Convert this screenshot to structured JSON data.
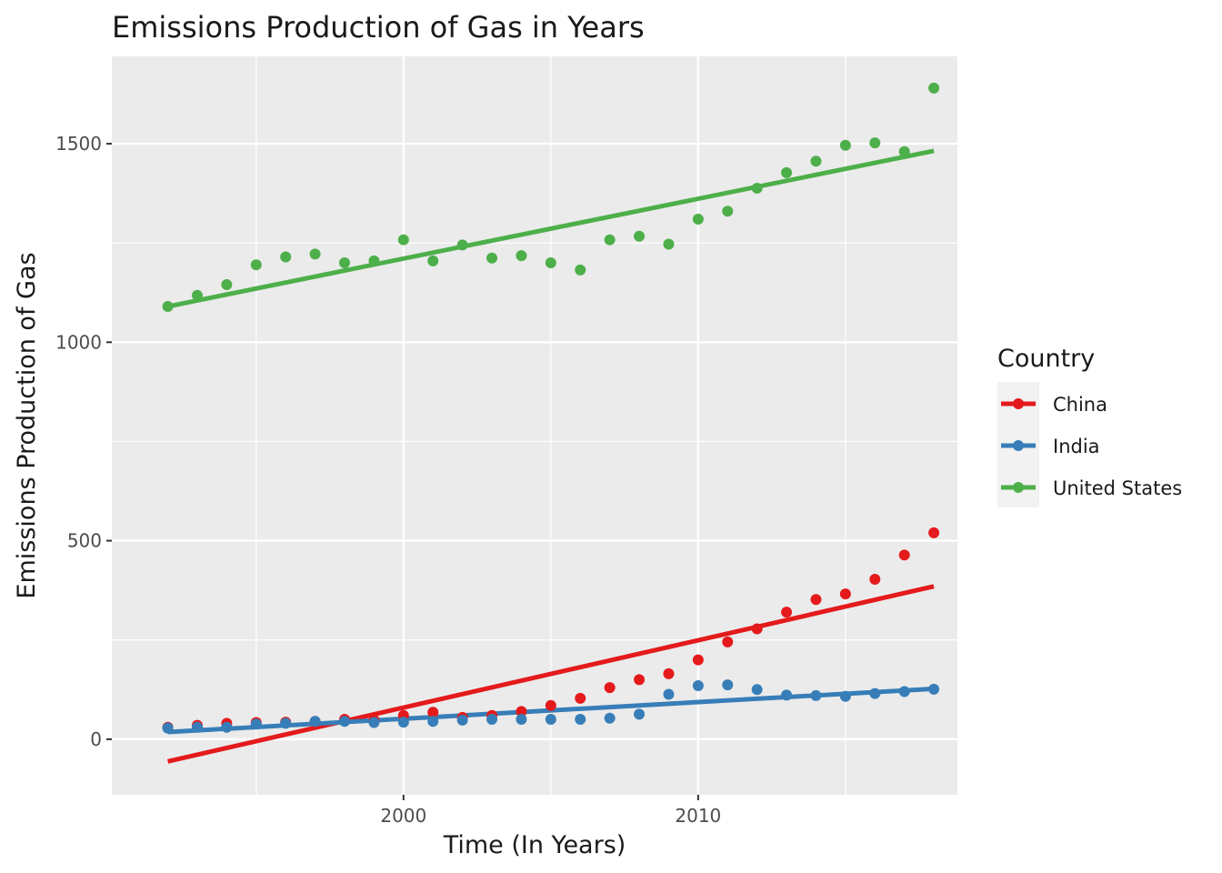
{
  "chart_data": {
    "type": "scatter",
    "title": "Emissions Production of Gas in Years",
    "xlabel": "Time (In Years)",
    "ylabel": "Emissions Production of Gas",
    "xlim": [
      1990.1,
      2018.8
    ],
    "ylim": [
      -140,
      1720
    ],
    "x_ticks": [
      2000,
      2010
    ],
    "y_ticks": [
      0,
      500,
      1000,
      1500
    ],
    "x_tick_labels": [
      "2000",
      "2010"
    ],
    "y_tick_labels": [
      "0",
      "500",
      "1000",
      "1500"
    ],
    "grid": true,
    "legend": {
      "title": "Country",
      "position": "right"
    },
    "x": [
      1992,
      1993,
      1994,
      1995,
      1996,
      1997,
      1998,
      1999,
      2000,
      2001,
      2002,
      2003,
      2004,
      2005,
      2006,
      2007,
      2008,
      2009,
      2010,
      2011,
      2012,
      2013,
      2014,
      2015,
      2016,
      2017,
      2018
    ],
    "series": [
      {
        "name": "China",
        "color": "#e41a1c",
        "values": [
          30,
          35,
          40,
          42,
          43,
          45,
          50,
          48,
          60,
          68,
          55,
          60,
          70,
          85,
          103,
          130,
          150,
          165,
          200,
          245,
          278,
          320,
          352,
          366,
          403,
          464,
          520
        ],
        "trend": [
          -56,
          385
        ]
      },
      {
        "name": "India",
        "color": "#377eb8",
        "values": [
          28,
          30,
          30,
          38,
          40,
          45,
          45,
          42,
          43,
          45,
          48,
          50,
          50,
          50,
          50,
          53,
          63,
          113,
          135,
          137,
          125,
          111,
          110,
          108,
          115,
          120,
          126
        ],
        "trend": [
          18,
          127
        ]
      },
      {
        "name": "United States",
        "color": "#4daf4a",
        "values": [
          1090,
          1118,
          1145,
          1195,
          1215,
          1222,
          1200,
          1205,
          1258,
          1205,
          1245,
          1212,
          1218,
          1200,
          1182,
          1258,
          1267,
          1247,
          1310,
          1330,
          1388,
          1427,
          1456,
          1496,
          1502,
          1480,
          1640
        ],
        "trend": [
          1090,
          1482
        ]
      }
    ]
  }
}
